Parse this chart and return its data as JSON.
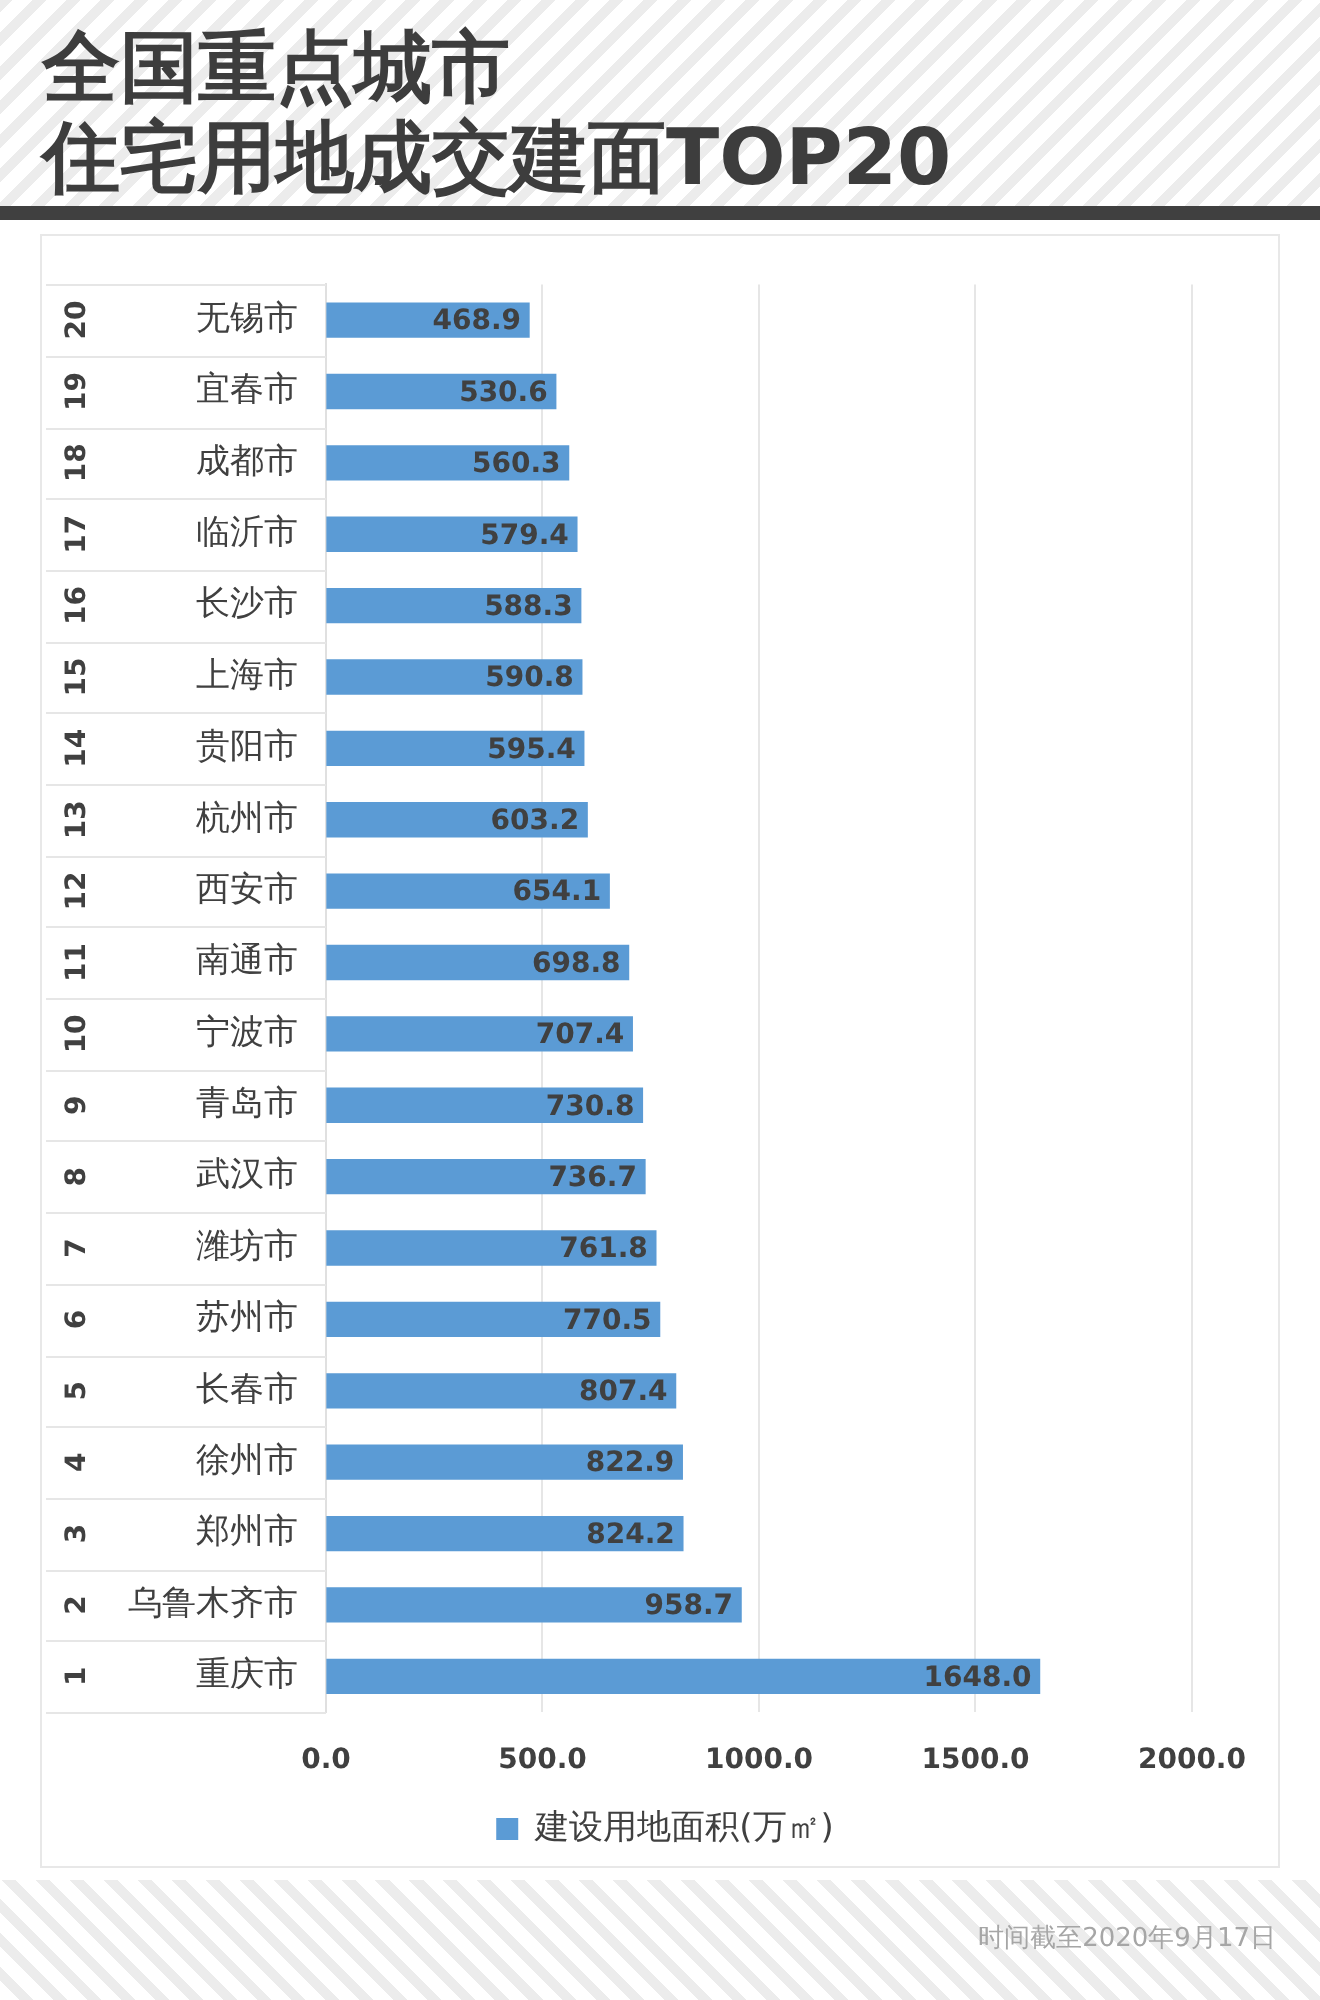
{
  "chart_data": {
    "type": "bar",
    "orientation": "horizontal",
    "title": "全国重点城市",
    "subtitle": "住宅用地成交建面TOP20",
    "categories": [
      "无锡市",
      "宜春市",
      "成都市",
      "临沂市",
      "长沙市",
      "上海市",
      "贵阳市",
      "杭州市",
      "西安市",
      "南通市",
      "宁波市",
      "青岛市",
      "武汉市",
      "潍坊市",
      "苏州市",
      "长春市",
      "徐州市",
      "郑州市",
      "乌鲁木齐市",
      "重庆市"
    ],
    "series": [
      {
        "name": "建设用地面积(万㎡)",
        "color": "#5b9bd5",
        "values": [
          468.9,
          530.6,
          560.3,
          579.4,
          588.3,
          590.8,
          595.4,
          603.2,
          654.1,
          698.8,
          707.4,
          730.8,
          736.7,
          761.8,
          770.5,
          807.4,
          822.9,
          824.2,
          958.7,
          1648.0
        ],
        "value_labels": [
          "468.9",
          "530.6",
          "560.3",
          "579.4",
          "588.3",
          "590.8",
          "595.4",
          "603.2",
          "654.1",
          "698.8",
          "707.4",
          "730.8",
          "736.7",
          "761.8",
          "770.5",
          "807.4",
          "822.9",
          "824.2",
          "958.7",
          "1648.0"
        ]
      }
    ],
    "xlim": [
      0,
      2000
    ],
    "xticks": [
      {
        "value": 0,
        "label": "0.0"
      },
      {
        "value": 500,
        "label": "500.0"
      },
      {
        "value": 1000,
        "label": "1000.0"
      },
      {
        "value": 1500,
        "label": "1500.0"
      },
      {
        "value": 2000,
        "label": "2000.0"
      }
    ],
    "grid": "x",
    "legend": "bottom",
    "annotations": [
      "20",
      "19",
      "18",
      "17",
      "16",
      "15",
      "14",
      "13",
      "12",
      "11",
      "10",
      "9",
      "8",
      "7",
      "6",
      "5",
      "4",
      "3",
      "2",
      "1",
      "时间截至2020年9月17日"
    ]
  }
}
